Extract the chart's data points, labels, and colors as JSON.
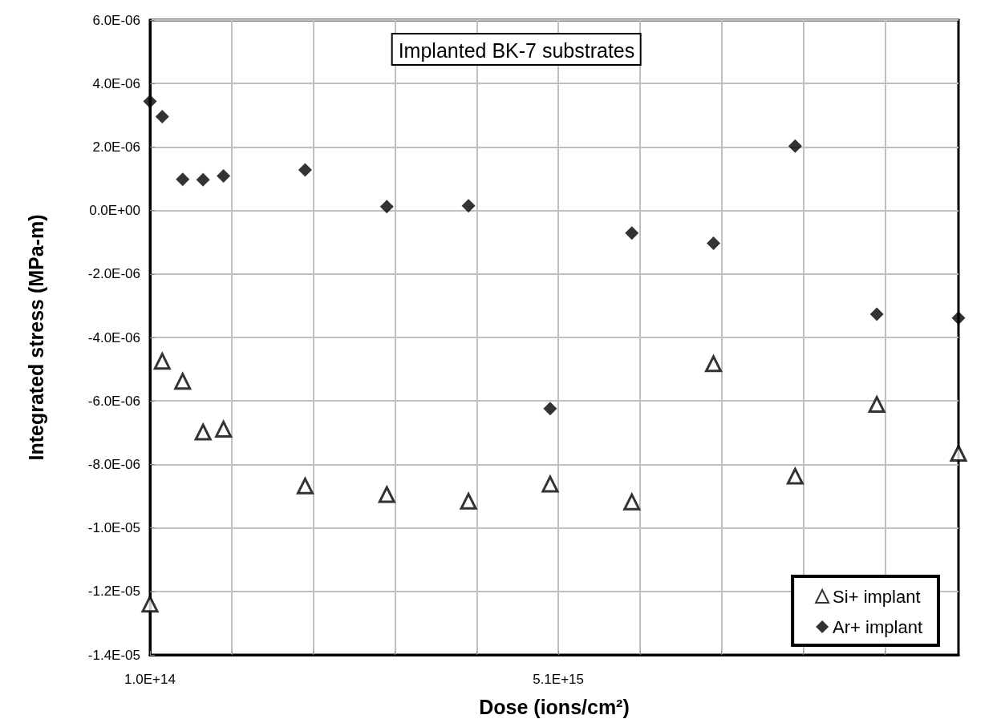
{
  "chart_data": {
    "type": "scatter",
    "title": "Implanted BK-7 substrates",
    "xlabel": "Dose (ions/cm²)",
    "ylabel": "Integrated stress (MPa-m)",
    "x": [
      100000000000000.0,
      250000000000000.0,
      500000000000000.0,
      750000000000000.0,
      1000000000000000.0,
      2000000000000000.0,
      3000000000000000.0,
      4000000000000000.0,
      5000000000000000.0,
      6000000000000000.0,
      7000000000000000.0,
      8000000000000000.0,
      9000000000000000.0,
      1e+16
    ],
    "series": [
      {
        "name": "Si+ implant",
        "color": "#000000",
        "marker": "triangle",
        "values": [
          -1.24e-05,
          -4.75e-06,
          -5.38e-06,
          -6.98e-06,
          -6.89e-06,
          -8.68e-06,
          -8.95e-06,
          -9.16e-06,
          -8.62e-06,
          -9.18e-06,
          -4.83e-06,
          -8.37e-06,
          -6.11e-06,
          -7.65e-06
        ]
      },
      {
        "name": "Ar+ implant",
        "color": "#000000",
        "marker": "diamond",
        "values": [
          3.44e-06,
          2.96e-06,
          9.8e-07,
          9.7e-07,
          1.09e-06,
          1.28e-06,
          1.2e-07,
          1.5e-07,
          -6.24e-06,
          -7.1e-07,
          -1.03e-06,
          2.03e-06,
          -3.27e-06,
          -3.39e-06
        ]
      }
    ],
    "xlim": [
      100000000000000.0,
      1e+16
    ],
    "xticks": [
      {
        "value": 100000000000000.0,
        "label": "1.0E+14"
      },
      {
        "value": 1100000000000000.0,
        "label": null
      },
      {
        "value": 2100000000000000.0,
        "label": null
      },
      {
        "value": 3100000000000000.0,
        "label": null
      },
      {
        "value": 4100000000000000.0,
        "label": null
      },
      {
        "value": 5100000000000000.0,
        "label": "5.1E+15"
      },
      {
        "value": 6100000000000000.0,
        "label": null
      },
      {
        "value": 7100000000000000.0,
        "label": null
      },
      {
        "value": 8100000000000000.0,
        "label": null
      },
      {
        "value": 9100000000000000.0,
        "label": null
      }
    ],
    "ylim": [
      -1.4e-05,
      6e-06
    ],
    "yticks": [
      {
        "value": -1.4e-05,
        "label": "-1.4E-05"
      },
      {
        "value": -1.2e-05,
        "label": "-1.2E-05"
      },
      {
        "value": -1e-05,
        "label": "-1.0E-05"
      },
      {
        "value": -8e-06,
        "label": "-8.0E-06"
      },
      {
        "value": -6e-06,
        "label": "-6.0E-06"
      },
      {
        "value": -4e-06,
        "label": "-4.0E-06"
      },
      {
        "value": -2e-06,
        "label": "-2.0E-06"
      },
      {
        "value": 0,
        "label": "0.0E+00"
      },
      {
        "value": 2e-06,
        "label": "2.0E-06"
      },
      {
        "value": 4e-06,
        "label": "4.0E-06"
      },
      {
        "value": 6e-06,
        "label": "6.0E-06"
      }
    ],
    "grid": true,
    "legend": "bottom right"
  }
}
